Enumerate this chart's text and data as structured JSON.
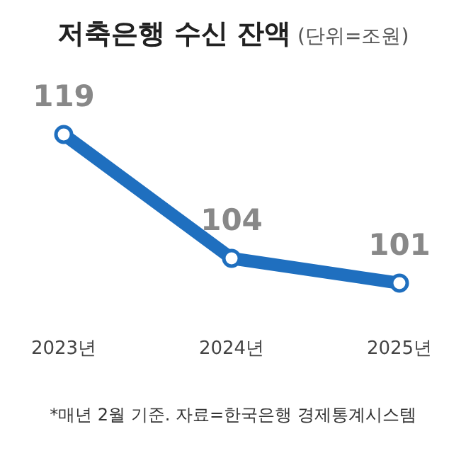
{
  "chart_data": {
    "type": "line",
    "title": "**저축은행 수신 잔액** (단위=조원)",
    "categories": [
      "2023년",
      "2024년",
      "2025년"
    ],
    "series": [
      {
        "color": "#1f6fbf",
        "values": [
          119,
          104,
          101
        ]
      }
    ],
    "data_labels": true,
    "marker": "circle",
    "line_style": "solid",
    "annotations": [
      "*매년 2월 기준. 자료=한국은행 경제통계시스템"
    ]
  }
}
